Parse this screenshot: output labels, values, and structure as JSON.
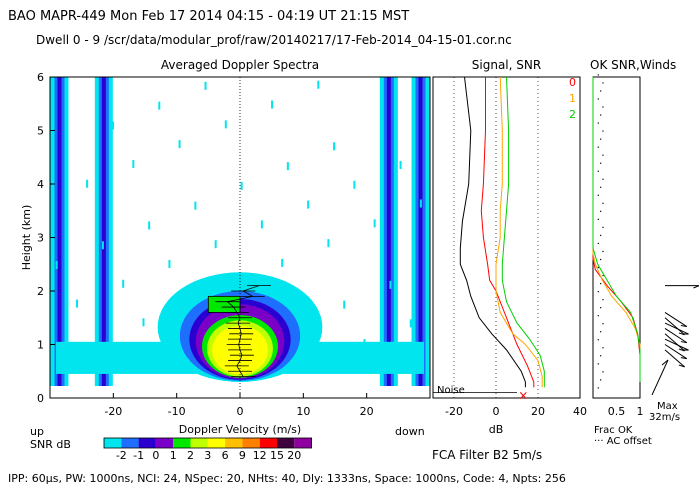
{
  "header": {
    "line1": "BAO   MAPR-449   Mon Feb 17 2014 04:15 - 04:19 UT 21:15 MST",
    "line2": "Dwell   0 -  9   /scr/data/modular_prof/raw/20140217/17-Feb-2014_04-15-01.cor.nc"
  },
  "footer": {
    "params": "IPP:  60µs,  PW: 1000ns,  NCI:  24,  NSpec: 20, NHts: 40,  Dly: 1333ns,  Space: 1000ns,  Code: 4,  Npts: 256",
    "filter": "FCA Filter B2   5m/s"
  },
  "colors": {
    "page_bg": "#ffffff",
    "snr_scale": [
      "#00e5ee",
      "#1f6fff",
      "#2a00d0",
      "#7a00c8",
      "#00e800",
      "#bfff00",
      "#ffff00",
      "#ffc000",
      "#ff8000",
      "#ff0000",
      "#400040",
      "#9000a0"
    ],
    "series_0": "#ff0000",
    "series_1": "#ffa500",
    "series_2": "#00d000",
    "signal": "#000000"
  },
  "chart_data": [
    {
      "type": "heatmap",
      "title": "Averaged Doppler Spectra",
      "xlabel": "Doppler Velocity (m/s)",
      "ylabel": "Height (km)",
      "xlim": [
        -30,
        30
      ],
      "ylim": [
        0,
        6
      ],
      "xticks": [
        -20,
        -10,
        0,
        10,
        20
      ],
      "yticks": [
        0,
        1,
        2,
        3,
        4,
        5,
        6
      ],
      "up_label": "up",
      "down_label": "down",
      "colorbar": {
        "label": "SNR dB",
        "values": [
          "-2",
          "-1",
          "0",
          "1",
          "2",
          "3",
          "6",
          "9",
          "12",
          "15",
          "20"
        ]
      },
      "noise_stripes_velocity_m_s": [
        -28.5,
        -21.5,
        23.5,
        28.5
      ],
      "echo_region": {
        "velocity_center": 0,
        "height_range_km": [
          0.3,
          2.3
        ]
      },
      "moment_profile": {
        "heights_km": [
          0.4,
          0.5,
          0.6,
          0.7,
          0.8,
          0.9,
          1.0,
          1.1,
          1.2,
          1.3,
          1.4,
          1.5,
          1.6,
          1.7,
          1.8,
          1.9,
          2.0,
          2.1
        ],
        "velocities_m_s": [
          0.5,
          0.0,
          -0.5,
          0.0,
          0.3,
          0.0,
          -0.2,
          0.0,
          0.2,
          0.0,
          -0.3,
          0.0,
          -0.5,
          -1.0,
          -2.0,
          2.0,
          0.5,
          3.0
        ]
      }
    },
    {
      "type": "line",
      "title": "Signal, SNR",
      "xlabel": "dB",
      "xlim": [
        -30,
        40
      ],
      "ylim": [
        0,
        6
      ],
      "xticks": [
        -20,
        0,
        20,
        40
      ],
      "noise_label": "Noise",
      "series": [
        {
          "name": "Signal",
          "x": [
            -15,
            -12,
            -13,
            -16,
            -17,
            -17,
            -14,
            -12,
            -8,
            -2,
            5,
            12,
            14,
            14
          ],
          "y": [
            6.0,
            5.0,
            4.0,
            3.3,
            2.8,
            2.5,
            2.2,
            1.9,
            1.5,
            1.2,
            0.9,
            0.5,
            0.3,
            0.2
          ]
        },
        {
          "name": "0",
          "x": [
            -5,
            -5,
            -6,
            -7,
            -6,
            -4,
            -3,
            0,
            5,
            10,
            15,
            18,
            18
          ],
          "y": [
            6.0,
            5.0,
            4.0,
            3.5,
            3.0,
            2.5,
            2.2,
            2.0,
            1.5,
            1.0,
            0.6,
            0.3,
            0.2
          ]
        },
        {
          "name": "1",
          "x": [
            2,
            3,
            3,
            2,
            2,
            0,
            0,
            2,
            8,
            14,
            20,
            22,
            22
          ],
          "y": [
            6.0,
            5.0,
            4.0,
            3.5,
            3.0,
            2.5,
            2.0,
            1.6,
            1.2,
            1.0,
            0.7,
            0.4,
            0.2
          ]
        },
        {
          "name": "2",
          "x": [
            5,
            6,
            6,
            5,
            4,
            3,
            3,
            5,
            10,
            16,
            21,
            23,
            23
          ],
          "y": [
            6.0,
            5.0,
            4.0,
            3.5,
            3.0,
            2.5,
            2.2,
            1.8,
            1.4,
            1.1,
            0.8,
            0.5,
            0.2
          ]
        }
      ],
      "legend": [
        "0",
        "1",
        "2"
      ]
    },
    {
      "type": "line",
      "title": "OK SNR,Winds",
      "xlabel": "Frac OK",
      "xlim": [
        0,
        1
      ],
      "xticks": [
        "0.5",
        "1"
      ],
      "ylim": [
        0,
        6
      ],
      "note": "··· AC offset",
      "series": [
        {
          "name": "0",
          "x": [
            1.0,
            1.0,
            0.95,
            0.85,
            0.6,
            0.3,
            0.05,
            0.0,
            0.0
          ],
          "y": [
            0.3,
            0.8,
            1.2,
            1.5,
            1.8,
            2.1,
            2.4,
            2.6,
            6.0
          ]
        },
        {
          "name": "1",
          "x": [
            1.0,
            1.0,
            0.9,
            0.7,
            0.4,
            0.2,
            0.05,
            0.0,
            0.0
          ],
          "y": [
            0.3,
            1.0,
            1.3,
            1.6,
            1.9,
            2.2,
            2.5,
            2.7,
            6.0
          ]
        },
        {
          "name": "2",
          "x": [
            1.0,
            1.0,
            0.95,
            0.8,
            0.5,
            0.3,
            0.1,
            0.0,
            0.0
          ],
          "y": [
            0.3,
            0.9,
            1.2,
            1.6,
            1.9,
            2.2,
            2.5,
            2.8,
            6.0
          ]
        }
      ],
      "wind_scale_label": "Max",
      "wind_scale_value": "32m/s",
      "wind_barbs_heights_km": [
        2.1,
        1.6,
        1.5,
        1.4,
        1.3,
        1.2,
        1.1,
        1.0,
        0.9
      ]
    }
  ]
}
